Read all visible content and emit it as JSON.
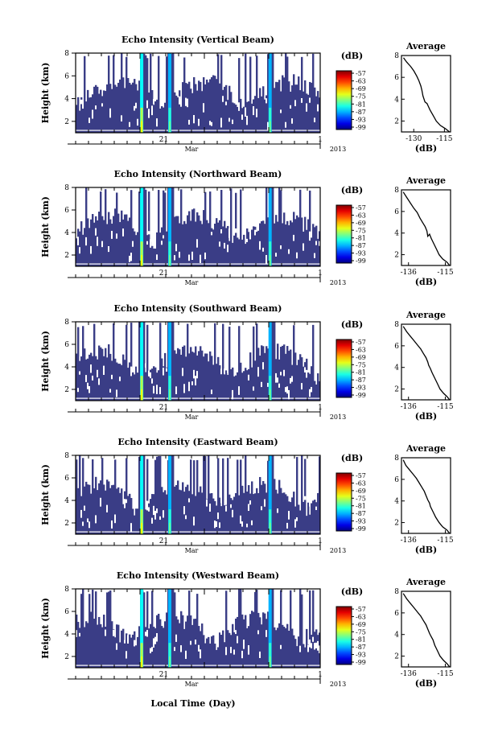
{
  "figure": {
    "xlabel": "Local Time (Day)",
    "colors": {
      "background": "#ffffff",
      "below_threshold": "#ffffff",
      "axis": "#000000"
    },
    "colormap_name": "jet"
  },
  "chart_data": [
    {
      "type": "heatmap",
      "title": "Echo Intensity (Vertical Beam)",
      "ylabel": "Height (km)",
      "ylim": [
        1,
        8
      ],
      "yticks": [
        2,
        4,
        6,
        8
      ],
      "xtick_label": "21",
      "month_label": "Mar",
      "year_label": "2013",
      "end_label": "1",
      "colorbar": {
        "unit": "(dB)",
        "ticks": [
          "-57",
          "-63",
          "-69",
          "-75",
          "-81",
          "-87",
          "-93",
          "-99"
        ],
        "range": [
          -100,
          -55
        ]
      }
    },
    {
      "type": "heatmap",
      "title": "Echo Intensity (Northward Beam)",
      "ylabel": "Height (km)",
      "ylim": [
        1,
        8
      ],
      "yticks": [
        2,
        4,
        6,
        8
      ],
      "xtick_label": "21",
      "month_label": "Mar",
      "year_label": "2013",
      "end_label": "1",
      "colorbar": {
        "unit": "(dB)",
        "ticks": [
          "-57",
          "-63",
          "-69",
          "-75",
          "-81",
          "-87",
          "-93",
          "-99"
        ],
        "range": [
          -100,
          -55
        ]
      }
    },
    {
      "type": "heatmap",
      "title": "Echo Intensity (Southward Beam)",
      "ylabel": "Height (km)",
      "ylim": [
        1,
        8
      ],
      "yticks": [
        2,
        4,
        6,
        8
      ],
      "xtick_label": "21",
      "month_label": "Mar",
      "year_label": "2013",
      "end_label": "1",
      "colorbar": {
        "unit": "(dB)",
        "ticks": [
          "-57",
          "-63",
          "-69",
          "-75",
          "-81",
          "-87",
          "-93",
          "-99"
        ],
        "range": [
          -100,
          -55
        ]
      }
    },
    {
      "type": "heatmap",
      "title": "Echo Intensity (Eastward Beam)",
      "ylabel": "Height (km)",
      "ylim": [
        1,
        8
      ],
      "yticks": [
        2,
        4,
        6,
        8
      ],
      "xtick_label": "21",
      "month_label": "Mar",
      "year_label": "2013",
      "end_label": "1",
      "colorbar": {
        "unit": "(dB)",
        "ticks": [
          "-57",
          "-63",
          "-69",
          "-75",
          "-81",
          "-87",
          "-93",
          "-99"
        ],
        "range": [
          -100,
          -55
        ]
      }
    },
    {
      "type": "heatmap",
      "title": "Echo Intensity (Westward Beam)",
      "ylabel": "Height (km)",
      "ylim": [
        1,
        8
      ],
      "yticks": [
        2,
        4,
        6,
        8
      ],
      "xtick_label": "21",
      "month_label": "Mar",
      "year_label": "2013",
      "end_label": "1",
      "colorbar": {
        "unit": "(dB)",
        "ticks": [
          "-57",
          "-63",
          "-69",
          "-75",
          "-81",
          "-87",
          "-93",
          "-99"
        ],
        "range": [
          -100,
          -55
        ]
      }
    },
    {
      "type": "line",
      "title": "Average",
      "xlabel": "(dB)",
      "xticks": [
        "-130",
        "-115"
      ],
      "xlim": [
        -136,
        -112
      ],
      "ylim": [
        1,
        8
      ],
      "yticks": [
        2,
        4,
        6,
        8
      ],
      "x": [
        -112.5,
        -114.5,
        -117,
        -119,
        -120.5,
        -122,
        -123,
        -123.5,
        -124.5,
        -125.5,
        -126,
        -126.5,
        -127.5,
        -128.5,
        -130,
        -131.5,
        -133.5,
        -135
      ],
      "y": [
        1,
        1.3,
        1.6,
        2.0,
        2.5,
        3.0,
        3.4,
        3.6,
        3.75,
        4.3,
        4.8,
        5.2,
        5.7,
        6.1,
        6.6,
        7.0,
        7.4,
        7.8
      ]
    },
    {
      "type": "line",
      "title": "Average",
      "xlabel": "(dB)",
      "xticks": [
        "-136",
        "-115"
      ],
      "xlim": [
        -140,
        -112
      ],
      "ylim": [
        1,
        8
      ],
      "yticks": [
        2,
        4,
        6,
        8
      ],
      "x": [
        -112.5,
        -114,
        -116.5,
        -118.5,
        -120,
        -121.5,
        -123,
        -124,
        -125,
        -125.5,
        -126.5,
        -128,
        -129.5,
        -131,
        -133,
        -135,
        -137,
        -139
      ],
      "y": [
        1,
        1.3,
        1.6,
        2.0,
        2.5,
        3.0,
        3.5,
        3.9,
        3.7,
        4.2,
        4.6,
        5.0,
        5.4,
        5.9,
        6.3,
        6.8,
        7.3,
        7.8
      ]
    },
    {
      "type": "line",
      "title": "Average",
      "xlabel": "(dB)",
      "xticks": [
        "-136",
        "-115"
      ],
      "xlim": [
        -140,
        -112
      ],
      "ylim": [
        1,
        8
      ],
      "yticks": [
        2,
        4,
        6,
        8
      ],
      "x": [
        -112.5,
        -114,
        -116,
        -118,
        -119.5,
        -121,
        -122.5,
        -123.5,
        -124.5,
        -125,
        -126,
        -127.5,
        -129,
        -131,
        -133,
        -135,
        -137,
        -139
      ],
      "y": [
        1,
        1.3,
        1.6,
        2.0,
        2.5,
        3.0,
        3.5,
        3.9,
        4.2,
        4.5,
        4.9,
        5.3,
        5.7,
        6.1,
        6.5,
        6.9,
        7.3,
        7.8
      ]
    },
    {
      "type": "line",
      "title": "Average",
      "xlabel": "(dB)",
      "xticks": [
        "-136",
        "-115"
      ],
      "xlim": [
        -140,
        -112
      ],
      "ylim": [
        1,
        8
      ],
      "yticks": [
        2,
        4,
        6,
        8
      ],
      "x": [
        -112.5,
        -114,
        -116.5,
        -118.5,
        -120.5,
        -122,
        -123.5,
        -124,
        -125,
        -126,
        -127,
        -128.5,
        -130,
        -131.5,
        -133.5,
        -135.5,
        -137.5,
        -139
      ],
      "y": [
        1,
        1.3,
        1.6,
        2.0,
        2.5,
        3.0,
        3.5,
        3.8,
        4.1,
        4.5,
        4.9,
        5.3,
        5.7,
        6.1,
        6.5,
        6.9,
        7.3,
        7.8
      ]
    },
    {
      "type": "line",
      "title": "Average",
      "xlabel": "(dB)",
      "xticks": [
        "-136",
        "-115"
      ],
      "xlim": [
        -140,
        -112
      ],
      "ylim": [
        1,
        8
      ],
      "yticks": [
        2,
        4,
        6,
        8
      ],
      "x": [
        -112.5,
        -114,
        -116,
        -118,
        -119.5,
        -121,
        -122,
        -123,
        -124,
        -125,
        -126,
        -127.5,
        -129,
        -131,
        -133,
        -135,
        -137,
        -139
      ],
      "y": [
        1,
        1.3,
        1.6,
        2.0,
        2.5,
        3.0,
        3.5,
        3.8,
        4.1,
        4.5,
        4.9,
        5.3,
        5.7,
        6.1,
        6.5,
        6.9,
        7.3,
        7.8
      ]
    }
  ]
}
